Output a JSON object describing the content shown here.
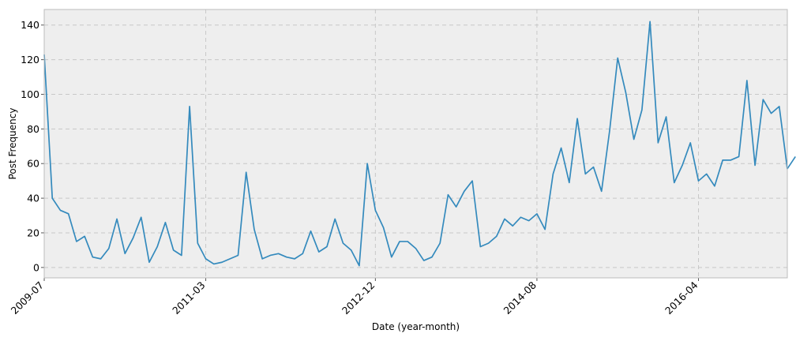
{
  "chart_data": {
    "type": "line",
    "title": "",
    "xlabel": "Date (year-month)",
    "ylabel": "Post Frequency",
    "x_start": "2009-07",
    "x_step": "1 month",
    "xlim": [
      "2009-07",
      "2017-03"
    ],
    "ylim": [
      -6,
      149
    ],
    "xticks": [
      "2009-07",
      "2011-03",
      "2012-12",
      "2014-08",
      "2016-04"
    ],
    "yticks": [
      0,
      20,
      40,
      60,
      80,
      100,
      120,
      140
    ],
    "grid": true,
    "legend": "none",
    "colors": {
      "line": "#348abd",
      "plot_bg": "#eeeeee",
      "grid": "#c8c8c8",
      "frame": "#bcbcbc"
    },
    "series": [
      {
        "values": [
          123,
          40,
          33,
          31,
          15,
          18,
          6,
          5,
          11,
          28,
          8,
          17,
          29,
          3,
          12,
          26,
          10,
          7,
          93,
          14,
          5,
          2,
          3,
          5,
          7,
          55,
          22,
          5,
          7,
          8,
          6,
          5,
          8,
          21,
          9,
          12,
          28,
          14,
          10,
          1,
          60,
          33,
          23,
          6,
          15,
          15,
          11,
          4,
          6,
          14,
          42,
          35,
          44,
          50,
          12,
          14,
          18,
          28,
          24,
          29,
          27,
          31,
          22,
          54,
          69,
          49,
          86,
          54,
          58,
          44,
          79,
          121,
          101,
          74,
          91,
          142,
          72,
          87,
          49,
          59,
          72,
          50,
          54,
          47,
          62,
          62,
          64,
          108,
          59,
          97,
          89,
          93,
          57,
          64
        ]
      }
    ]
  }
}
